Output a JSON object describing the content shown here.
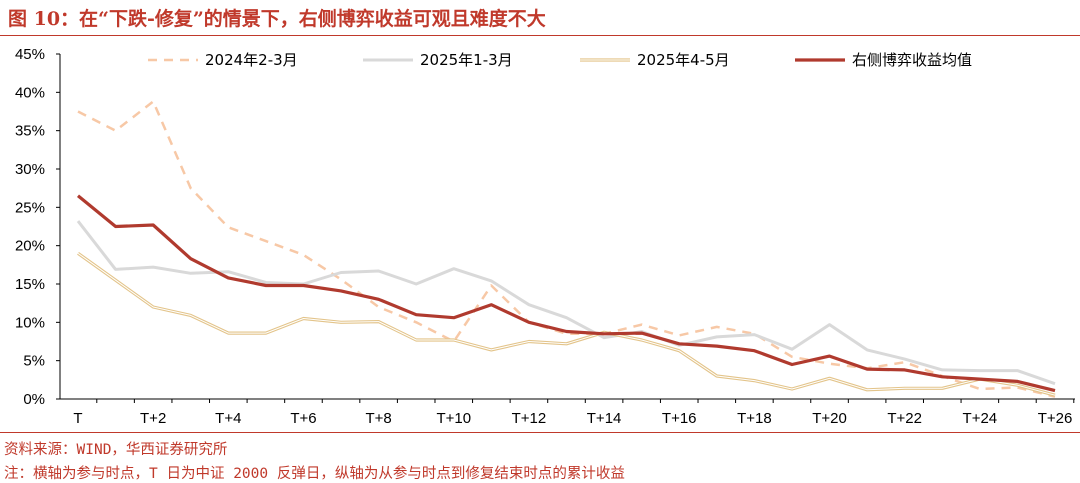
{
  "header": {
    "title": "图 10：在“下跌-修复”的情景下，右侧博弈收益可观且难度不大"
  },
  "footer": {
    "source": "资料来源：WIND，华西证券研究所",
    "note": "注：横轴为参与时点，T 日为中证 2000 反弹日，纵轴为从参与时点到修复结束时点的累计收益"
  },
  "chart_data": {
    "type": "line",
    "title": "",
    "xlabel": "",
    "ylabel": "",
    "x": [
      "T",
      "T+1",
      "T+2",
      "T+3",
      "T+4",
      "T+5",
      "T+6",
      "T+7",
      "T+8",
      "T+9",
      "T+10",
      "T+11",
      "T+12",
      "T+13",
      "T+14",
      "T+15",
      "T+16",
      "T+17",
      "T+18",
      "T+19",
      "T+20",
      "T+21",
      "T+22",
      "T+23",
      "T+24",
      "T+25",
      "T+26"
    ],
    "x_tick_labels": [
      "T",
      "T+2",
      "T+4",
      "T+6",
      "T+8",
      "T+10",
      "T+12",
      "T+14",
      "T+16",
      "T+18",
      "T+20",
      "T+22",
      "T+24",
      "T+26"
    ],
    "y_tick_labels": [
      "0%",
      "5%",
      "10%",
      "15%",
      "20%",
      "25%",
      "30%",
      "35%",
      "40%",
      "45%"
    ],
    "ylim": [
      0,
      45
    ],
    "grid": false,
    "legend_position": "top",
    "series": [
      {
        "name": "2024年2-3月",
        "style": "dashed",
        "color": "#f7c8a6",
        "values": [
          37.5,
          35.0,
          38.8,
          27.5,
          22.4,
          20.6,
          18.8,
          15.6,
          12.0,
          10.0,
          7.5,
          14.8,
          10.0,
          8.5,
          8.5,
          9.7,
          8.3,
          9.4,
          8.5,
          5.5,
          4.6,
          4.0,
          4.8,
          3.0,
          1.3,
          1.5,
          0.3
        ]
      },
      {
        "name": "2025年1-3月",
        "style": "solid",
        "color": "#d9d9d9",
        "values": [
          23.2,
          16.9,
          17.2,
          16.4,
          16.6,
          15.2,
          15.0,
          16.5,
          16.7,
          15.0,
          17.0,
          15.4,
          12.3,
          10.6,
          8.0,
          8.8,
          7.0,
          8.1,
          8.4,
          6.5,
          9.7,
          6.4,
          5.2,
          3.8,
          3.7,
          3.7,
          2.0
        ]
      },
      {
        "name": "2025年4-5月",
        "style": "double",
        "color": "#e3c48a",
        "values": [
          19.0,
          15.5,
          12.0,
          10.9,
          8.6,
          8.6,
          10.5,
          10.0,
          10.1,
          7.7,
          7.7,
          6.4,
          7.5,
          7.2,
          8.7,
          7.7,
          6.3,
          3.0,
          2.4,
          1.3,
          2.7,
          1.2,
          1.4,
          1.4,
          2.6,
          1.8,
          0.5
        ]
      },
      {
        "name": "右侧博弈收益均值",
        "style": "solid-thick",
        "color": "#b03a2e",
        "values": [
          26.5,
          22.5,
          22.7,
          18.3,
          15.8,
          14.8,
          14.8,
          14.1,
          13.0,
          11.0,
          10.6,
          12.3,
          10.0,
          8.8,
          8.5,
          8.6,
          7.2,
          6.9,
          6.3,
          4.5,
          5.6,
          3.9,
          3.8,
          2.9,
          2.6,
          2.3,
          1.1
        ]
      }
    ]
  }
}
